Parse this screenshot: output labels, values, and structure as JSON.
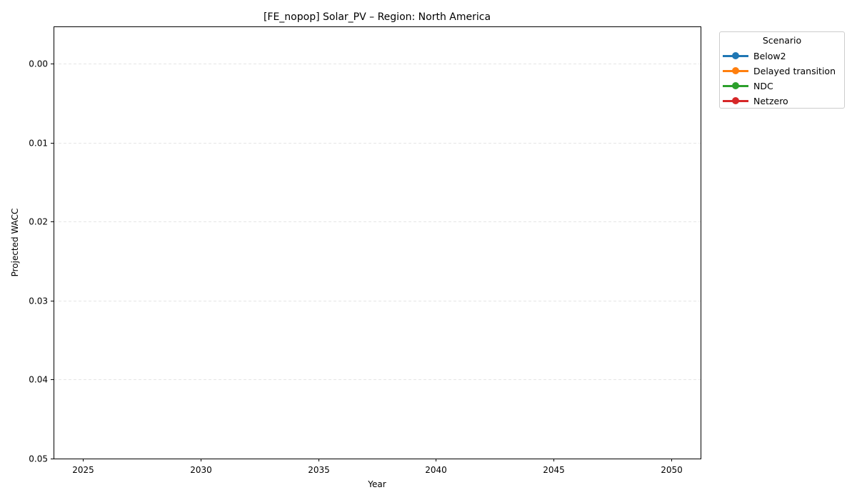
{
  "chart_data": {
    "type": "line",
    "title": "[FE_nopop] Solar_PV – Region: North America",
    "xlabel": "Year",
    "ylabel": "Projected WACC",
    "x_ticks": [
      "2025",
      "2030",
      "2035",
      "2040",
      "2045",
      "2050"
    ],
    "y_ticks": [
      "0.00",
      "0.01",
      "0.02",
      "0.03",
      "0.04",
      "0.05"
    ],
    "xlim": [
      2023.75,
      2051.25
    ],
    "ylim": [
      -0.00475,
      0.05
    ],
    "y_inverted": true,
    "grid": "y-dashed",
    "legend": {
      "title": "Scenario",
      "placement": "outside-top-right"
    },
    "series": [
      {
        "name": "Below2",
        "color": "#1f77b4",
        "x": [],
        "y": []
      },
      {
        "name": "Delayed transition",
        "color": "#ff7f0e",
        "x": [],
        "y": []
      },
      {
        "name": "NDC",
        "color": "#2ca02c",
        "x": [],
        "y": []
      },
      {
        "name": "Netzero",
        "color": "#d62728",
        "x": [],
        "y": []
      }
    ]
  }
}
